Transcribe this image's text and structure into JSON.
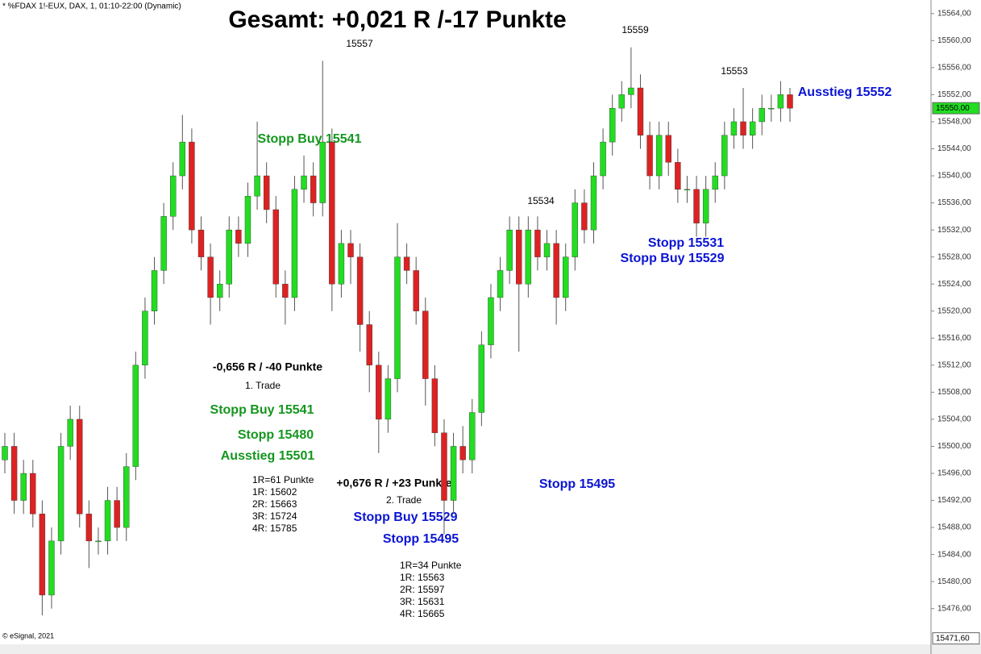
{
  "chart_data": {
    "type": "candlestick",
    "header": "* %FDAX 1!-EUX, DAX, 1, 01:10-22:00 (Dynamic)",
    "title": "Gesamt: +0,021 R /-17 Punkte",
    "footer": "© eSignal, 2021",
    "up_color": "#22dd22",
    "down_color": "#dd2222",
    "ylim": [
      15470.6,
      15566.0
    ],
    "yticks": [
      {
        "value": 15564,
        "label": "15564,00"
      },
      {
        "value": 15560,
        "label": "15560,00"
      },
      {
        "value": 15556,
        "label": "15556,00"
      },
      {
        "value": 15552,
        "label": "15552,00"
      },
      {
        "value": 15548,
        "label": "15548,00"
      },
      {
        "value": 15544,
        "label": "15544,00"
      },
      {
        "value": 15540,
        "label": "15540,00"
      },
      {
        "value": 15536,
        "label": "15536,00"
      },
      {
        "value": 15532,
        "label": "15532,00"
      },
      {
        "value": 15528,
        "label": "15528,00"
      },
      {
        "value": 15524,
        "label": "15524,00"
      },
      {
        "value": 15520,
        "label": "15520,00"
      },
      {
        "value": 15516,
        "label": "15516,00"
      },
      {
        "value": 15512,
        "label": "15512,00"
      },
      {
        "value": 15508,
        "label": "15508,00"
      },
      {
        "value": 15504,
        "label": "15504,00"
      },
      {
        "value": 15500,
        "label": "15500,00"
      },
      {
        "value": 15496,
        "label": "15496,00"
      },
      {
        "value": 15492,
        "label": "15492,00"
      },
      {
        "value": 15488,
        "label": "15488,00"
      },
      {
        "value": 15484,
        "label": "15484,00"
      },
      {
        "value": 15480,
        "label": "15480,00"
      },
      {
        "value": 15476,
        "label": "15476,00"
      }
    ],
    "last_price": {
      "value": 15550,
      "label": "15550,00"
    },
    "bottom_marker": {
      "value": 15471.6,
      "label": "15471,60"
    },
    "open": [
      15498,
      15500,
      15492,
      15496,
      15490,
      15478,
      15486,
      15500,
      15504,
      15490,
      15486,
      15486,
      15492,
      15488,
      15497,
      15512,
      15520,
      15526,
      15534,
      15540,
      15545,
      15532,
      15528,
      15522,
      15524,
      15532,
      15530,
      15537,
      15540,
      15535,
      15524,
      15522,
      15538,
      15540,
      15536,
      15545,
      15524,
      15530,
      15528,
      15518,
      15512,
      15504,
      15510,
      15528,
      15526,
      15520,
      15510,
      15502,
      15492,
      15500,
      15498,
      15505,
      15515,
      15522,
      15526,
      15532,
      15524,
      15532,
      15528,
      15530,
      15522,
      15528,
      15536,
      15532,
      15540,
      15545,
      15550,
      15552,
      15553,
      15546,
      15540,
      15546,
      15542,
      15538,
      15538,
      15533,
      15538,
      15540,
      15546,
      15548,
      15546,
      15548,
      15550,
      15550,
      15552
    ],
    "high": [
      15502,
      15502,
      15498,
      15498,
      15492,
      15488,
      15502,
      15506,
      15506,
      15492,
      15488,
      15494,
      15494,
      15499,
      15514,
      15522,
      15528,
      15536,
      15542,
      15549,
      15547,
      15534,
      15530,
      15526,
      15534,
      15534,
      15539,
      15548,
      15542,
      15537,
      15526,
      15540,
      15543,
      15542,
      15557,
      15547,
      15532,
      15532,
      15530,
      15520,
      15514,
      15512,
      15533,
      15530,
      15528,
      15522,
      15512,
      15504,
      15502,
      15503,
      15507,
      15517,
      15524,
      15528,
      15534,
      15534,
      15534,
      15534,
      15532,
      15532,
      15530,
      15538,
      15538,
      15542,
      15547,
      15552,
      15554,
      15559,
      15555,
      15548,
      15548,
      15548,
      15544,
      15540,
      15540,
      15540,
      15542,
      15548,
      15550,
      15553,
      15550,
      15552,
      15552,
      15554,
      15553
    ],
    "low": [
      15496,
      15490,
      15490,
      15488,
      15475,
      15476,
      15484,
      15498,
      15488,
      15482,
      15484,
      15484,
      15486,
      15486,
      15495,
      15510,
      15518,
      15524,
      15532,
      15538,
      15530,
      15526,
      15518,
      15520,
      15522,
      15528,
      15528,
      15535,
      15533,
      15522,
      15518,
      15520,
      15536,
      15534,
      15534,
      15520,
      15522,
      15524,
      15514,
      15508,
      15499,
      15502,
      15508,
      15524,
      15518,
      15506,
      15500,
      15487,
      15490,
      15496,
      15496,
      15503,
      15513,
      15520,
      15524,
      15514,
      15522,
      15526,
      15526,
      15518,
      15520,
      15526,
      15530,
      15530,
      15538,
      15543,
      15548,
      15550,
      15544,
      15538,
      15538,
      15540,
      15536,
      15536,
      15531,
      15531,
      15536,
      15538,
      15544,
      15544,
      15544,
      15546,
      15548,
      15548,
      15548
    ],
    "close": [
      15500,
      15492,
      15496,
      15490,
      15478,
      15486,
      15500,
      15504,
      15490,
      15486,
      15486,
      15492,
      15488,
      15497,
      15512,
      15520,
      15526,
      15534,
      15540,
      15545,
      15532,
      15528,
      15522,
      15524,
      15532,
      15530,
      15537,
      15540,
      15535,
      15524,
      15522,
      15538,
      15540,
      15536,
      15545,
      15524,
      15530,
      15528,
      15518,
      15512,
      15504,
      15510,
      15528,
      15526,
      15520,
      15510,
      15502,
      15492,
      15500,
      15498,
      15505,
      15515,
      15522,
      15526,
      15532,
      15524,
      15532,
      15528,
      15530,
      15522,
      15528,
      15536,
      15532,
      15540,
      15545,
      15550,
      15552,
      15553,
      15546,
      15540,
      15546,
      15542,
      15538,
      15538,
      15533,
      15538,
      15540,
      15546,
      15548,
      15546,
      15548,
      15550,
      15550,
      15552,
      15550
    ],
    "annotations": [
      "15557",
      "15559",
      "15553",
      "15534",
      "Stopp Buy 15541",
      "Ausstieg 15552",
      "Stopp 15531",
      "Stopp Buy 15529",
      "-0,656 R / -40 Punkte",
      "1. Trade",
      "Stopp Buy 15541",
      "Stopp 15480",
      "Ausstieg 15501",
      "1R=61 Punkte",
      "1R: 15602",
      "2R: 15663",
      "3R: 15724",
      "4R: 15785",
      "+0,676 R / +23 Punkte",
      "2. Trade",
      "Stopp Buy 15529",
      "Stopp 15495",
      "1R=34 Punkte",
      "1R: 15563",
      "2R: 15597",
      "3R: 15631",
      "4R: 15665",
      "Stopp 15495"
    ]
  }
}
